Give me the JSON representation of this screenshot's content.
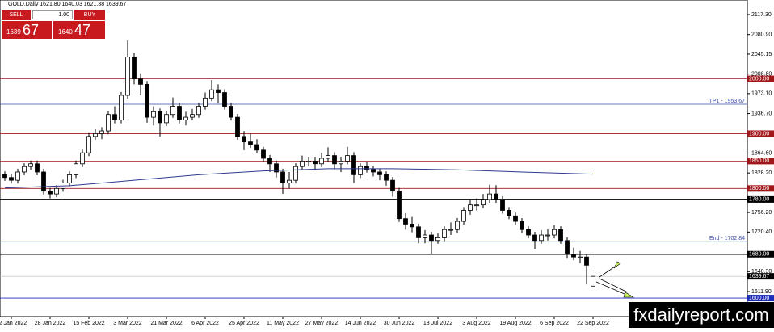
{
  "chart_data": {
    "type": "candlestick",
    "header": "GOLD,Daily  1621.80 1640.03 1621.38 1639.67",
    "categories": [
      null,
      "12 Jan 2022",
      null,
      null,
      null,
      null,
      null,
      "28 Jan 2022",
      null,
      null,
      null,
      null,
      null,
      "15 Feb 2022",
      null,
      null,
      null,
      null,
      null,
      "3 Mar 2022",
      null,
      null,
      null,
      null,
      null,
      "21 Mar 2022",
      null,
      null,
      null,
      null,
      null,
      "6 Apr 2022",
      null,
      null,
      null,
      null,
      null,
      "25 Apr 2022",
      null,
      null,
      null,
      null,
      null,
      "11 May 2022",
      null,
      null,
      null,
      null,
      null,
      "27 May 2022",
      null,
      null,
      null,
      null,
      null,
      "14 Jun 2022",
      null,
      null,
      null,
      null,
      null,
      "30 Jun 2022",
      null,
      null,
      null,
      null,
      null,
      "18 Jul 2022",
      null,
      null,
      null,
      null,
      null,
      "3 Aug 2022",
      null,
      null,
      null,
      null,
      null,
      "19 Aug 2022",
      null,
      null,
      null,
      null,
      null,
      "6 Sep 2022",
      null,
      null,
      null,
      null,
      null,
      "22 Sep 2022"
    ],
    "open": [
      1825,
      1820,
      1815,
      1830,
      1840,
      1845,
      1830,
      1795,
      1790,
      1800,
      1810,
      1825,
      1845,
      1865,
      1895,
      1900,
      1905,
      1935,
      1925,
      1970,
      2040,
      2000,
      1990,
      1930,
      1940,
      1920,
      1935,
      1950,
      1925,
      1930,
      1935,
      1950,
      1965,
      1980,
      1975,
      1950,
      1930,
      1895,
      1885,
      1880,
      1870,
      1855,
      1845,
      1830,
      1810,
      1815,
      1840,
      1850,
      1850,
      1845,
      1855,
      1860,
      1845,
      1850,
      1860,
      1825,
      1840,
      1835,
      1830,
      1825,
      1815,
      1795,
      1745,
      1735,
      1730,
      1710,
      1715,
      1705,
      1710,
      1725,
      1725,
      1740,
      1760,
      1770,
      1770,
      1780,
      1790,
      1780,
      1760,
      1750,
      1740,
      1725,
      1715,
      1705,
      1715,
      1715,
      1725,
      1705,
      1680,
      1675,
      1675,
      1621.8
    ],
    "high": [
      1831,
      1826,
      1836,
      1846,
      1851,
      1851,
      1836,
      1801,
      1806,
      1816,
      1831,
      1851,
      1871,
      1901,
      1908,
      1912,
      1941,
      1950,
      1976,
      2070,
      2048,
      2010,
      1996,
      1950,
      1946,
      1941,
      1966,
      1956,
      1940,
      1945,
      1956,
      1975,
      1998,
      1990,
      1981,
      1956,
      1936,
      1905,
      1900,
      1890,
      1876,
      1861,
      1851,
      1836,
      1830,
      1846,
      1860,
      1858,
      1858,
      1865,
      1875,
      1866,
      1858,
      1876,
      1866,
      1846,
      1848,
      1841,
      1836,
      1831,
      1821,
      1801,
      1755,
      1748,
      1736,
      1724,
      1721,
      1718,
      1731,
      1738,
      1746,
      1766,
      1780,
      1782,
      1790,
      1807,
      1806,
      1786,
      1766,
      1756,
      1746,
      1731,
      1721,
      1724,
      1726,
      1733,
      1731,
      1711,
      1692,
      1686,
      1681,
      1640.03
    ],
    "low": [
      1814,
      1809,
      1809,
      1824,
      1834,
      1824,
      1789,
      1782,
      1784,
      1794,
      1804,
      1819,
      1839,
      1859,
      1889,
      1890,
      1899,
      1919,
      1919,
      1964,
      1990,
      1970,
      1920,
      1915,
      1895,
      1914,
      1929,
      1919,
      1915,
      1924,
      1929,
      1944,
      1959,
      1955,
      1944,
      1924,
      1889,
      1870,
      1874,
      1864,
      1849,
      1830,
      1820,
      1790,
      1800,
      1809,
      1834,
      1840,
      1835,
      1839,
      1849,
      1835,
      1830,
      1844,
      1810,
      1819,
      1829,
      1822,
      1815,
      1805,
      1785,
      1739,
      1725,
      1720,
      1700,
      1700,
      1681,
      1699,
      1704,
      1715,
      1719,
      1734,
      1752,
      1760,
      1764,
      1774,
      1774,
      1754,
      1744,
      1734,
      1719,
      1709,
      1690,
      1699,
      1705,
      1709,
      1699,
      1672,
      1669,
      1664,
      1625,
      1621.38
    ],
    "close": [
      1820,
      1815,
      1830,
      1840,
      1845,
      1830,
      1795,
      1790,
      1800,
      1810,
      1825,
      1845,
      1865,
      1895,
      1900,
      1905,
      1935,
      1925,
      1970,
      2040,
      2000,
      1990,
      1930,
      1940,
      1920,
      1935,
      1950,
      1925,
      1930,
      1935,
      1950,
      1965,
      1980,
      1975,
      1950,
      1930,
      1895,
      1885,
      1880,
      1870,
      1855,
      1845,
      1830,
      1810,
      1815,
      1840,
      1850,
      1850,
      1845,
      1855,
      1860,
      1845,
      1850,
      1860,
      1825,
      1840,
      1835,
      1830,
      1825,
      1815,
      1795,
      1745,
      1735,
      1730,
      1710,
      1715,
      1705,
      1710,
      1725,
      1725,
      1740,
      1760,
      1770,
      1770,
      1780,
      1790,
      1780,
      1760,
      1750,
      1740,
      1725,
      1715,
      1705,
      1715,
      1715,
      1725,
      1705,
      1680,
      1675,
      1675,
      1660,
      1639.67
    ],
    "moving_average": {
      "color": "#2f3a8f",
      "x": [
        0,
        10,
        20,
        30,
        40,
        50,
        60,
        70,
        80,
        91
      ],
      "values": [
        1801,
        1805,
        1815,
        1825,
        1832,
        1836,
        1836,
        1834,
        1830,
        1826
      ]
    },
    "ylim": [
      1566.2,
      2143.8
    ],
    "yticks": [
      {
        "value": 2117.3,
        "label": "2117.30"
      },
      {
        "value": 2080.9,
        "label": "2080.90"
      },
      {
        "value": 2045.15,
        "label": "2045.15"
      },
      {
        "value": 2008.8,
        "label": "2008.80"
      },
      {
        "value": 1973.1,
        "label": "1973.10"
      },
      {
        "value": 1936.7,
        "label": "1936.70"
      },
      {
        "value": 1864.6,
        "label": "1864.60"
      },
      {
        "value": 1828.2,
        "label": "1828.20"
      },
      {
        "value": 1756.2,
        "label": "1756.20"
      },
      {
        "value": 1720.4,
        "label": "1720.40"
      },
      {
        "value": 1648.3,
        "label": "1648.30"
      },
      {
        "value": 1611.9,
        "label": "1611.90"
      }
    ],
    "levels": [
      {
        "value": 2000,
        "label": "2000.00",
        "color": "#a0171a",
        "where": "axis"
      },
      {
        "value": 1953.67,
        "label": "TP1 - 1953.67",
        "color": "#3a4aa8",
        "where": "plot"
      },
      {
        "value": 1900,
        "label": "1900.00",
        "color": "#a0171a",
        "where": "axis"
      },
      {
        "value": 1850,
        "label": "1850.00",
        "color": "#a0171a",
        "where": "axis"
      },
      {
        "value": 1800,
        "label": "1800.00",
        "color": "#a0171a",
        "where": "axis"
      },
      {
        "value": 1780,
        "label": "1780.00",
        "color": "#000000",
        "where": "axis"
      },
      {
        "value": 1702.84,
        "label": "End - 1702.84",
        "color": "#3a4aa8",
        "where": "plot"
      },
      {
        "value": 1680,
        "label": "1680.00",
        "color": "#000000",
        "where": "axis"
      },
      {
        "value": 1600,
        "label": "1600.00",
        "color": "#1c2db8",
        "where": "axis"
      }
    ],
    "last_price": {
      "value": 1639.67,
      "label": "1639.67"
    }
  },
  "trade_panel": {
    "sell": "SELL",
    "lot": "1.00",
    "buy": "BUY",
    "bid_main": "1639",
    "bid_pips": "67",
    "ask_main": "1640",
    "ask_pips": "47"
  },
  "watermark": "fxdailyreport.com"
}
